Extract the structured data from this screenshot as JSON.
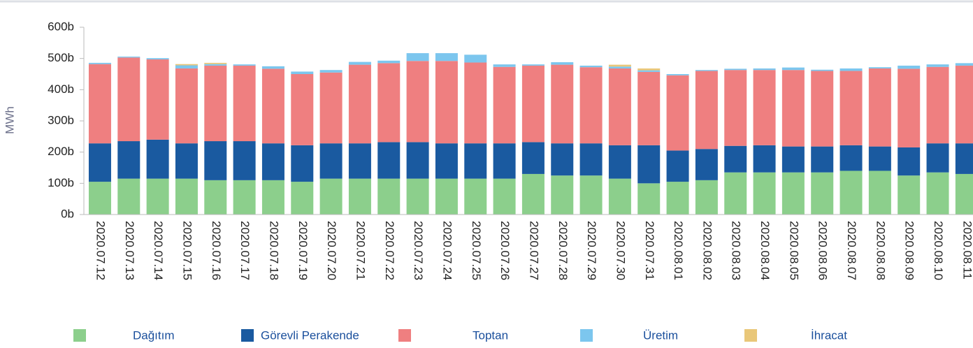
{
  "chart_data": {
    "type": "stacked_bar",
    "ylabel": "MWh",
    "categories": [
      "2020.07.12",
      "2020.07.13",
      "2020.07.14",
      "2020.07.15",
      "2020.07.16",
      "2020.07.17",
      "2020.07.18",
      "2020.07.19",
      "2020.07.20",
      "2020.07.21",
      "2020.07.22",
      "2020.07.23",
      "2020.07.24",
      "2020.07.25",
      "2020.07.26",
      "2020.07.27",
      "2020.07.28",
      "2020.07.29",
      "2020.07.30",
      "2020.07.31",
      "2020.08.01",
      "2020.08.02",
      "2020.08.03",
      "2020.08.04",
      "2020.08.05",
      "2020.08.06",
      "2020.08.07",
      "2020.08.08",
      "2020.08.09",
      "2020.08.10",
      "2020.08.11"
    ],
    "series": [
      {
        "name": "Dağıtım",
        "color": "#8ccf8c",
        "values": [
          105,
          115,
          115,
          115,
          110,
          110,
          110,
          105,
          115,
          115,
          115,
          115,
          115,
          115,
          115,
          130,
          125,
          125,
          115,
          100,
          105,
          110,
          135,
          135,
          135,
          135,
          140,
          140,
          125,
          135,
          130
        ]
      },
      {
        "name": "Görevli Perakende",
        "color": "#1a5aa0",
        "values": [
          123,
          120,
          125,
          113,
          125,
          125,
          118,
          117,
          113,
          113,
          117,
          117,
          113,
          113,
          113,
          102,
          103,
          103,
          107,
          122,
          100,
          100,
          85,
          87,
          83,
          83,
          82,
          78,
          90,
          93,
          98
        ]
      },
      {
        "name": "Toptan",
        "color": "#ef7f80",
        "values": [
          254,
          268,
          257,
          240,
          242,
          242,
          239,
          228,
          227,
          252,
          253,
          260,
          264,
          259,
          245,
          245,
          252,
          244,
          246,
          235,
          241,
          250,
          243,
          241,
          245,
          242,
          238,
          250,
          252,
          245,
          249
        ]
      },
      {
        "name": "Üretim",
        "color": "#7cc6ee",
        "values": [
          4,
          3,
          4,
          10,
          5,
          4,
          8,
          8,
          8,
          9,
          8,
          25,
          25,
          25,
          8,
          4,
          8,
          5,
          6,
          5,
          4,
          3,
          4,
          5,
          8,
          4,
          8,
          4,
          10,
          8,
          8
        ]
      },
      {
        "name": "İhracat",
        "color": "#e9c779",
        "values": [
          0,
          0,
          0,
          4,
          4,
          0,
          0,
          0,
          0,
          0,
          0,
          0,
          0,
          0,
          0,
          0,
          0,
          0,
          6,
          6,
          0,
          0,
          0,
          0,
          0,
          0,
          0,
          0,
          0,
          0,
          0
        ]
      }
    ],
    "ylim": [
      0,
      600
    ],
    "yticks": [
      {
        "value": 0,
        "label": "0b"
      },
      {
        "value": 100,
        "label": "100b"
      },
      {
        "value": 200,
        "label": "200b"
      },
      {
        "value": 300,
        "label": "300b"
      },
      {
        "value": 400,
        "label": "400b"
      },
      {
        "value": 500,
        "label": "500b"
      },
      {
        "value": 600,
        "label": "600b"
      }
    ],
    "grid": false
  }
}
